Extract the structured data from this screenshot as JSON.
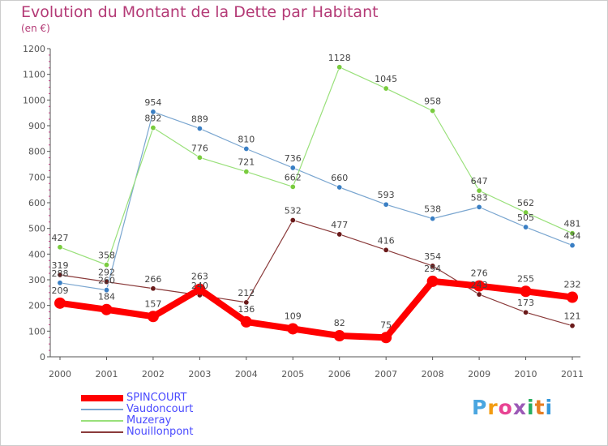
{
  "header": {
    "title": "Evolution du Montant de la Dette par Habitant",
    "unit": "(en €)"
  },
  "logo": {
    "text": "Proxiti",
    "letter_colors": [
      "#4aa6e0",
      "#f39c12",
      "#e84393",
      "#9b59b6",
      "#27ae60",
      "#e67e22",
      "#3498db"
    ]
  },
  "chart_data": {
    "type": "line",
    "title": "Evolution du Montant de la Dette par Habitant",
    "subtitle": "(en €)",
    "xlabel": "",
    "ylabel": "",
    "ylim": [
      0,
      1200
    ],
    "yticks": [
      0,
      100,
      200,
      300,
      400,
      500,
      600,
      700,
      800,
      900,
      1000,
      1100,
      1200
    ],
    "categories": [
      "2000",
      "2001",
      "2002",
      "2003",
      "2004",
      "2005",
      "2006",
      "2007",
      "2008",
      "2009",
      "2010",
      "2011"
    ],
    "grid": false,
    "legend_position": "bottom-left",
    "series": [
      {
        "name": "SPINCOURT",
        "color": "#ff0000",
        "marker": "#ff0000",
        "thick": true,
        "values": [
          209,
          184,
          157,
          263,
          136,
          109,
          82,
          75,
          294,
          276,
          255,
          232
        ]
      },
      {
        "name": "Vaudoncourt",
        "color": "#7aa6d0",
        "marker": "#3a7fc4",
        "thick": false,
        "values": [
          288,
          260,
          954,
          889,
          810,
          736,
          660,
          593,
          538,
          583,
          505,
          434
        ]
      },
      {
        "name": "Muzeray",
        "color": "#99e07a",
        "marker": "#79cc3e",
        "thick": false,
        "values": [
          427,
          358,
          892,
          776,
          721,
          662,
          1128,
          1045,
          958,
          647,
          562,
          481
        ]
      },
      {
        "name": "Nouillonpont",
        "color": "#8a3a3a",
        "marker": "#6a1a1a",
        "thick": false,
        "values": [
          319,
          292,
          266,
          240,
          212,
          532,
          477,
          416,
          354,
          243,
          173,
          121
        ]
      }
    ],
    "visible_data_labels": [
      {
        "series": 0,
        "index": 0,
        "text": "209"
      },
      {
        "series": 0,
        "index": 1,
        "text": "184"
      },
      {
        "series": 0,
        "index": 2,
        "text": "157"
      },
      {
        "series": 0,
        "index": 3,
        "text": "263"
      },
      {
        "series": 0,
        "index": 4,
        "text": "136"
      },
      {
        "series": 0,
        "index": 5,
        "text": "109"
      },
      {
        "series": 0,
        "index": 6,
        "text": "82"
      },
      {
        "series": 0,
        "index": 7,
        "text": "75"
      },
      {
        "series": 0,
        "index": 8,
        "text": "294"
      },
      {
        "series": 0,
        "index": 9,
        "text": "276"
      },
      {
        "series": 0,
        "index": 10,
        "text": "255"
      },
      {
        "series": 0,
        "index": 11,
        "text": "232"
      },
      {
        "series": 1,
        "index": 0,
        "text": "288"
      },
      {
        "series": 1,
        "index": 1,
        "text": "260"
      },
      {
        "series": 1,
        "index": 2,
        "text": "954"
      },
      {
        "series": 1,
        "index": 3,
        "text": "889"
      },
      {
        "series": 1,
        "index": 4,
        "text": "810"
      },
      {
        "series": 1,
        "index": 5,
        "text": "736"
      },
      {
        "series": 1,
        "index": 6,
        "text": "660"
      },
      {
        "series": 1,
        "index": 7,
        "text": "593"
      },
      {
        "series": 1,
        "index": 8,
        "text": "538"
      },
      {
        "series": 1,
        "index": 9,
        "text": "583"
      },
      {
        "series": 1,
        "index": 10,
        "text": "505"
      },
      {
        "series": 1,
        "index": 11,
        "text": "434"
      },
      {
        "series": 2,
        "index": 0,
        "text": "427"
      },
      {
        "series": 2,
        "index": 1,
        "text": "358"
      },
      {
        "series": 2,
        "index": 2,
        "text": "892"
      },
      {
        "series": 2,
        "index": 3,
        "text": "776"
      },
      {
        "series": 2,
        "index": 4,
        "text": "721"
      },
      {
        "series": 2,
        "index": 5,
        "text": "662"
      },
      {
        "series": 2,
        "index": 6,
        "text": "1128"
      },
      {
        "series": 2,
        "index": 7,
        "text": "1045"
      },
      {
        "series": 2,
        "index": 8,
        "text": "958"
      },
      {
        "series": 2,
        "index": 9,
        "text": "647"
      },
      {
        "series": 2,
        "index": 10,
        "text": "562"
      },
      {
        "series": 2,
        "index": 11,
        "text": "481"
      },
      {
        "series": 3,
        "index": 0,
        "text": "319"
      },
      {
        "series": 3,
        "index": 1,
        "text": "292"
      },
      {
        "series": 3,
        "index": 2,
        "text": "266"
      },
      {
        "series": 3,
        "index": 3,
        "text": "240"
      },
      {
        "series": 3,
        "index": 4,
        "text": "212"
      },
      {
        "series": 3,
        "index": 5,
        "text": "532"
      },
      {
        "series": 3,
        "index": 6,
        "text": "477"
      },
      {
        "series": 3,
        "index": 7,
        "text": "416"
      },
      {
        "series": 3,
        "index": 8,
        "text": "354"
      },
      {
        "series": 3,
        "index": 9,
        "text": "243"
      },
      {
        "series": 3,
        "index": 10,
        "text": "173"
      },
      {
        "series": 3,
        "index": 11,
        "text": "121"
      }
    ]
  }
}
